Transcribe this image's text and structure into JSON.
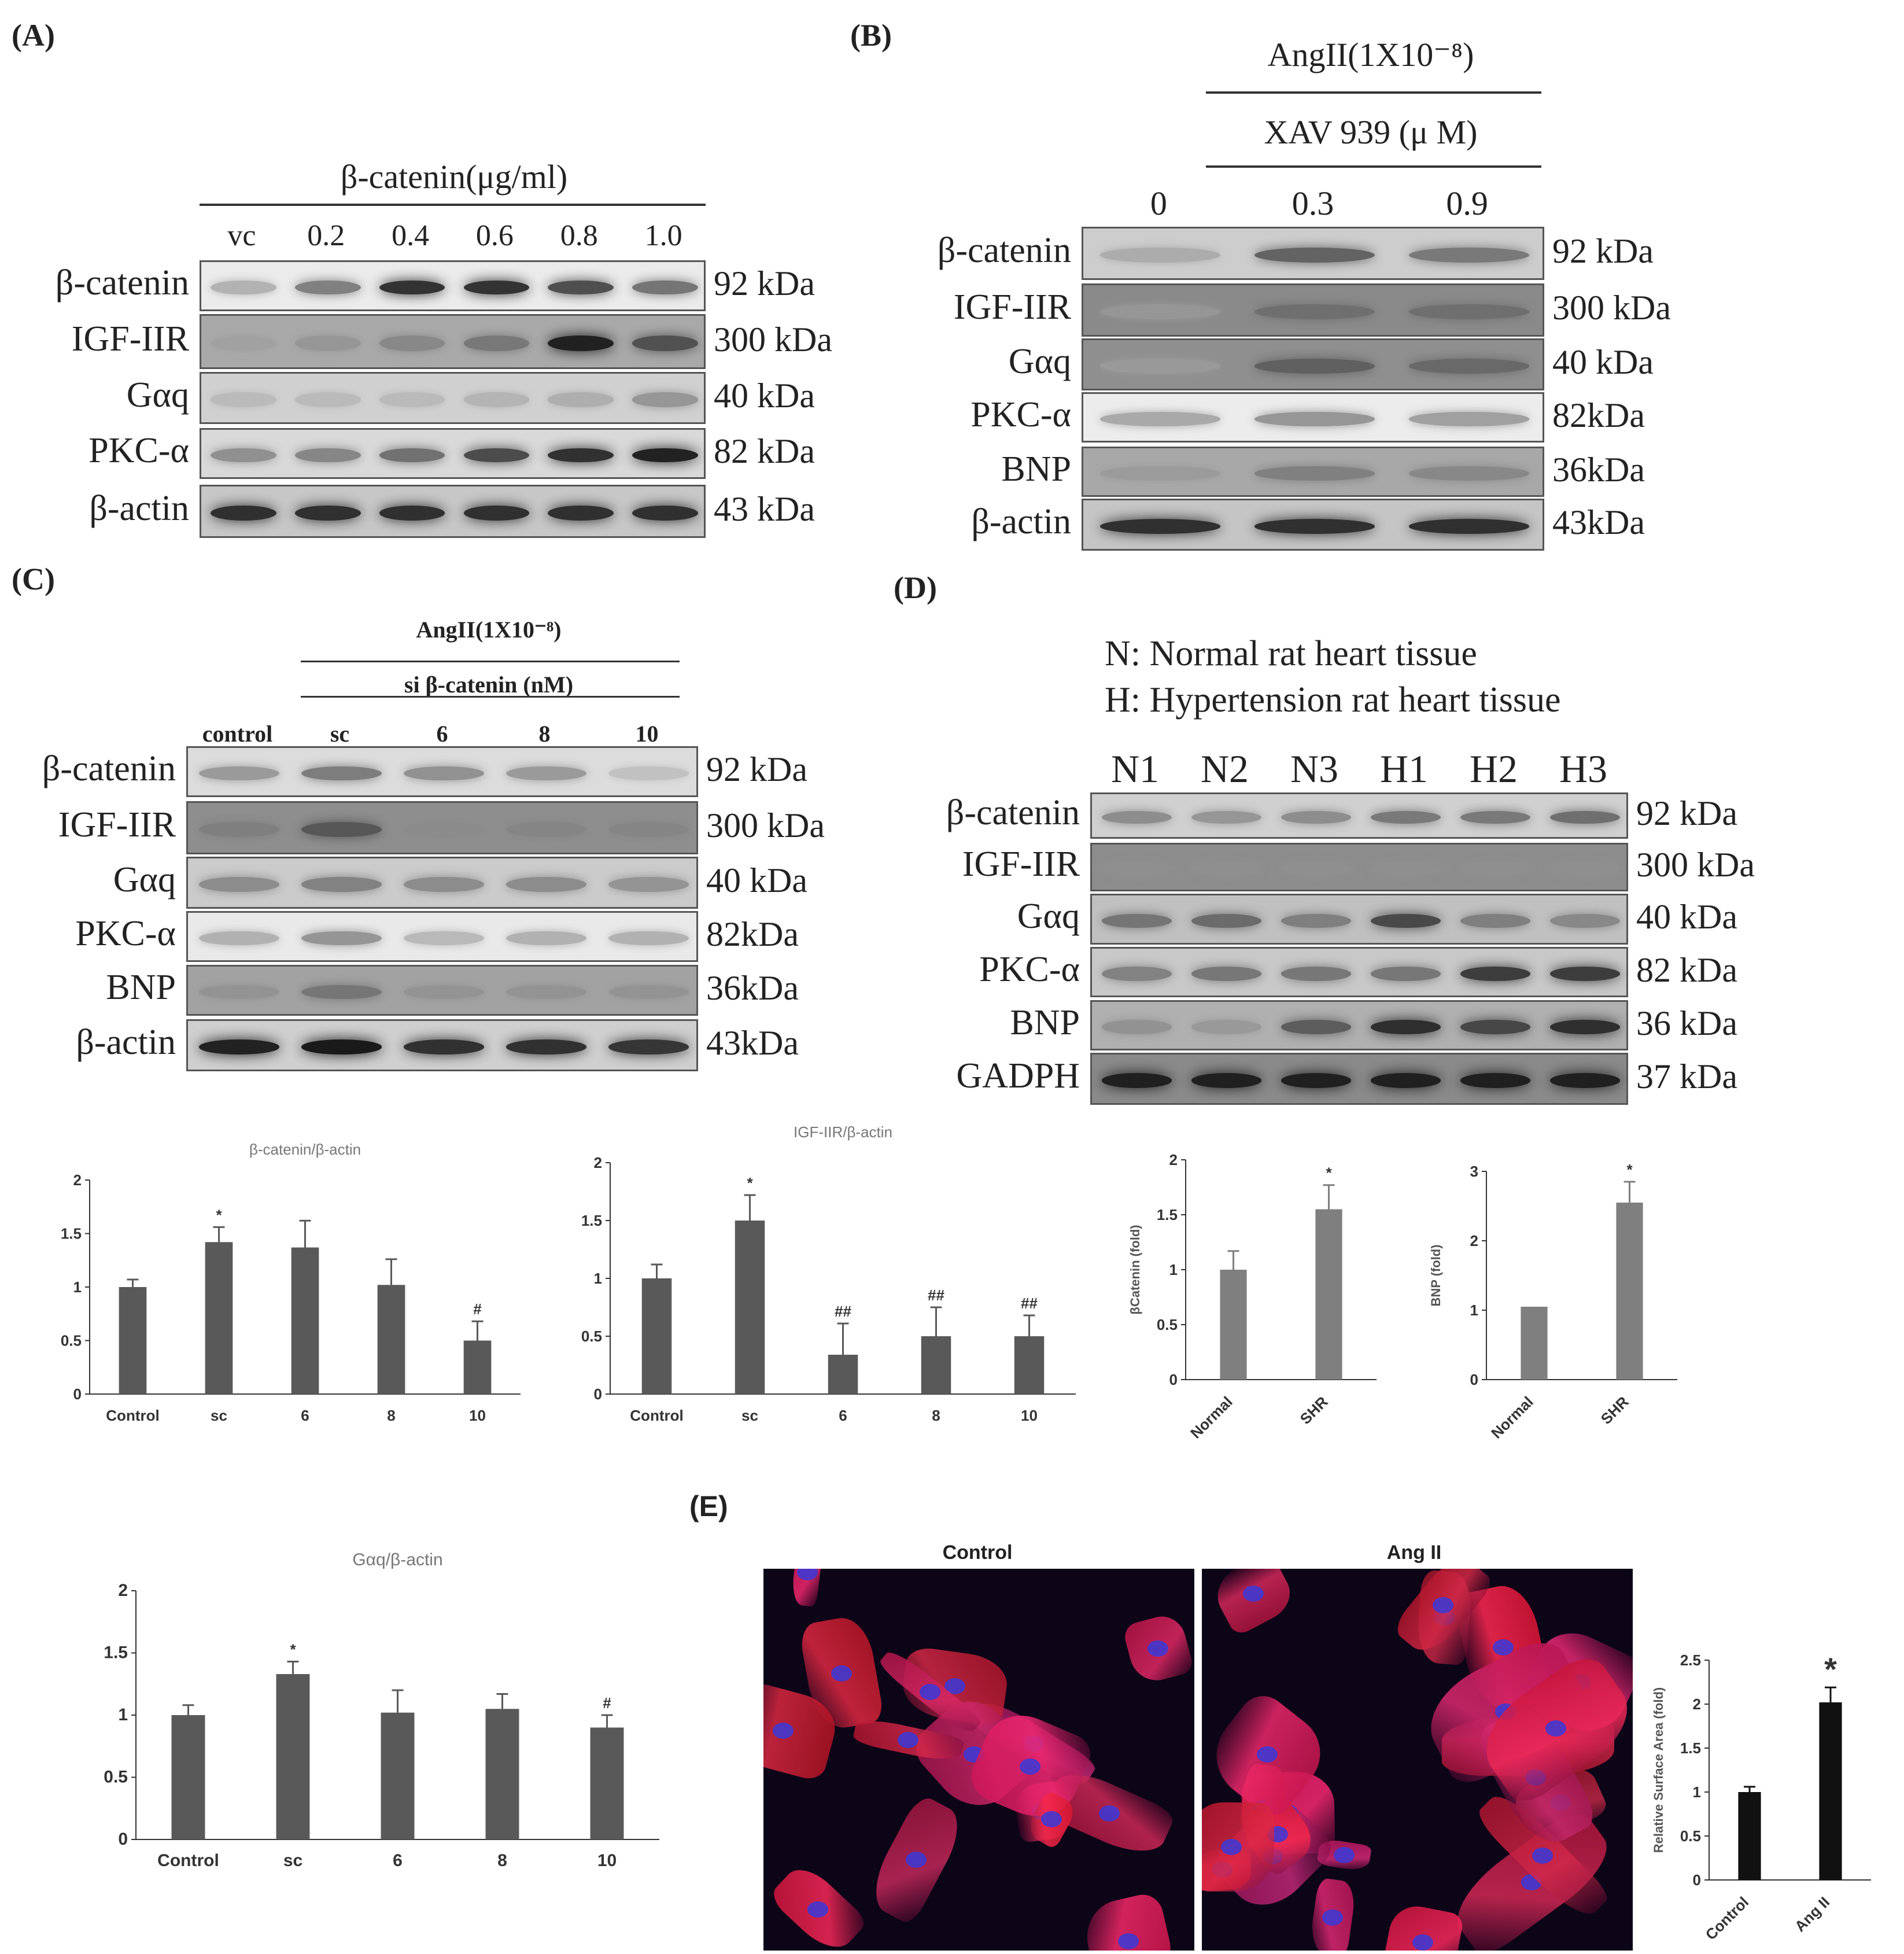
{
  "panels": {
    "A": {
      "label": "(A)",
      "header": "β-catenin(μg/ml)",
      "lanes": [
        "vc",
        "0.2",
        "0.4",
        "0.6",
        "0.8",
        "1.0"
      ],
      "blots": [
        {
          "protein": "β-catenin",
          "kda": "92 kDa"
        },
        {
          "protein": "IGF-IIR",
          "kda": "300 kDa"
        },
        {
          "protein": "Gαq",
          "kda": "40 kDa"
        },
        {
          "protein": "PKC-α",
          "kda": "82 kDa"
        },
        {
          "protein": "β-actin",
          "kda": "43 kDa"
        }
      ]
    },
    "B": {
      "label": "(B)",
      "header1": "AngII(1X10⁻⁸)",
      "header2": "XAV 939 (μ M)",
      "lanes": [
        "0",
        "0.3",
        "0.9"
      ],
      "blots": [
        {
          "protein": "β-catenin",
          "kda": "92 kDa"
        },
        {
          "protein": "IGF-IIR",
          "kda": "300 kDa"
        },
        {
          "protein": "Gαq",
          "kda": "40 kDa"
        },
        {
          "protein": "PKC-α",
          "kda": "82kDa"
        },
        {
          "protein": "BNP",
          "kda": "36kDa"
        },
        {
          "protein": "β-actin",
          "kda": "43kDa"
        }
      ]
    },
    "C": {
      "label": "(C)",
      "header1": "AngII(1X10⁻⁸)",
      "header2": "si β-catenin (nM)",
      "lanes": [
        "control",
        "sc",
        "6",
        "8",
        "10"
      ],
      "blots": [
        {
          "protein": "β-catenin",
          "kda": "92 kDa"
        },
        {
          "protein": "IGF-IIR",
          "kda": "300 kDa"
        },
        {
          "protein": "Gαq",
          "kda": "40 kDa"
        },
        {
          "protein": "PKC-α",
          "kda": "82kDa"
        },
        {
          "protein": "BNP",
          "kda": "36kDa"
        },
        {
          "protein": "β-actin",
          "kda": "43kDa"
        }
      ]
    },
    "D": {
      "label": "(D)",
      "legend1": "N: Normal rat heart tissue",
      "legend2": "H: Hypertension rat heart tissue",
      "lanes": [
        "N1",
        "N2",
        "N3",
        "H1",
        "H2",
        "H3"
      ],
      "blots": [
        {
          "protein": "β-catenin",
          "kda": "92 kDa"
        },
        {
          "protein": "IGF-IIR",
          "kda": "300 kDa"
        },
        {
          "protein": "Gαq",
          "kda": "40 kDa"
        },
        {
          "protein": "PKC-α",
          "kda": "82 kDa"
        },
        {
          "protein": "BNP",
          "kda": "36 kDa"
        },
        {
          "protein": "GADPH",
          "kda": "37 kDa"
        }
      ]
    },
    "E": {
      "label": "(E)",
      "image_titles": [
        "Control",
        "Ang II"
      ]
    }
  },
  "chart_data": [
    {
      "id": "c1",
      "type": "bar",
      "title": "β-catenin/β-actin",
      "ylabel": "",
      "categories": [
        "Control",
        "sc",
        "6",
        "8",
        "10"
      ],
      "values": [
        1.0,
        1.42,
        1.37,
        1.02,
        0.5
      ],
      "errors": [
        0.07,
        0.14,
        0.25,
        0.24,
        0.18
      ],
      "annotations": [
        "",
        "*",
        "",
        "",
        "#"
      ],
      "ylim": [
        0,
        2
      ],
      "yticks": [
        "0",
        "0.5",
        "1",
        "1.5",
        "2"
      ],
      "color": "#595959"
    },
    {
      "id": "c2",
      "type": "bar",
      "title": "IGF-IIR/β-actin",
      "ylabel": "",
      "categories": [
        "Control",
        "sc",
        "6",
        "8",
        "10"
      ],
      "values": [
        1.0,
        1.5,
        0.34,
        0.5,
        0.5
      ],
      "errors": [
        0.12,
        0.22,
        0.27,
        0.25,
        0.18
      ],
      "annotations": [
        "",
        "*",
        "##",
        "##",
        "##"
      ],
      "ylim": [
        0,
        2
      ],
      "yticks": [
        "0",
        "0.5",
        "1",
        "1.5",
        "2"
      ],
      "color": "#595959"
    },
    {
      "id": "c3",
      "type": "bar",
      "title": "",
      "ylabel": "βCatenin (fold)",
      "categories": [
        "Normal",
        "SHR"
      ],
      "values": [
        1.0,
        1.55
      ],
      "errors": [
        0.17,
        0.22
      ],
      "annotations": [
        "",
        "*"
      ],
      "ylim": [
        0,
        2
      ],
      "yticks": [
        "0",
        "0.5",
        "1",
        "1.5",
        "2"
      ],
      "color": "#7f7f7f"
    },
    {
      "id": "c4",
      "type": "bar",
      "title": "",
      "ylabel": "BNP (fold)",
      "categories": [
        "Normal",
        "SHR"
      ],
      "values": [
        1.05,
        2.55
      ],
      "errors": [
        0.0,
        0.3
      ],
      "annotations": [
        "",
        "*"
      ],
      "ylim": [
        0,
        3
      ],
      "yticks": [
        "0",
        "1",
        "2",
        "3"
      ],
      "color": "#7f7f7f"
    },
    {
      "id": "c5",
      "type": "bar",
      "title": "Gαq/β-actin",
      "ylabel": "",
      "categories": [
        "Control",
        "sc",
        "6",
        "8",
        "10"
      ],
      "values": [
        1.0,
        1.33,
        1.02,
        1.05,
        0.9
      ],
      "errors": [
        0.08,
        0.1,
        0.18,
        0.12,
        0.1
      ],
      "annotations": [
        "",
        "*",
        "",
        "",
        "#"
      ],
      "ylim": [
        0,
        2
      ],
      "yticks": [
        "0",
        "0.5",
        "1",
        "1.5",
        "2"
      ],
      "color": "#595959"
    },
    {
      "id": "c6",
      "type": "bar",
      "title": "",
      "ylabel": "Relative Surface Area (fold)",
      "categories": [
        "Control",
        "Ang II"
      ],
      "values": [
        1.0,
        2.02
      ],
      "errors": [
        0.06,
        0.17
      ],
      "annotations": [
        "",
        "*"
      ],
      "ylim": [
        0,
        2.5
      ],
      "yticks": [
        "0",
        "0.5",
        "1",
        "1.5",
        "2",
        "2.5"
      ],
      "color": "#111111"
    }
  ]
}
